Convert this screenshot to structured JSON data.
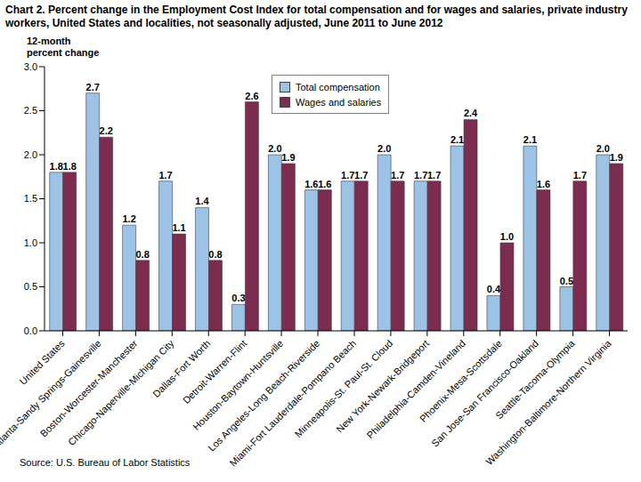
{
  "chart_data": {
    "type": "bar",
    "title": "Chart 2. Percent change in the Employment Cost Index for total compensation and for wages and salaries, private industry workers, United States and localities,  not seasonally adjusted, June 2011 to June 2012",
    "y_label": "12-month percent change",
    "source": "Source: U.S. Bureau of Labor Statistics",
    "categories": [
      "United States",
      "Atlanta-Sandy Springs-Gainesville",
      "Boston-Worcester-Manchester",
      "Chicago-Naperville-Michigan City",
      "Dallas-Fort Worth",
      "Detroit-Warren-Flint",
      "Houston-Baytown-Huntsville",
      "Los Angeles-Long Beach-Riverside",
      "Miami-Fort Lauderdale-Pompano Beach",
      "Minneapolis-St. Paul-St. Cloud",
      "New York-Newark-Bridgeport",
      "Philadelphia-Camden-Vineland",
      "Phoenix-Mesa-Scottsdale",
      "San Jose-San Francisco-Oakland",
      "Seattle-Tacoma-Olympia",
      "Washington-Baltimore-Northern  Virginia"
    ],
    "series": [
      {
        "name": "Total compensation",
        "color": "#9cc3e5",
        "values": [
          1.8,
          2.7,
          1.2,
          1.7,
          1.4,
          0.3,
          2.0,
          1.6,
          1.7,
          2.0,
          1.7,
          2.1,
          0.4,
          2.1,
          0.5,
          2.0
        ],
        "value_labels": [
          "1.8",
          "2.7",
          "1.2",
          "1.7",
          "1.4",
          "0.3",
          "2.0",
          "1.6",
          "1.7",
          "2.0",
          "1.7",
          "2.1",
          "0.4",
          "2.1",
          "0.5",
          "2.0"
        ]
      },
      {
        "name": "Wages and salaries",
        "color": "#7b2c4f",
        "values": [
          1.8,
          2.2,
          0.8,
          1.1,
          0.8,
          2.6,
          1.9,
          1.6,
          1.7,
          1.7,
          1.7,
          2.4,
          1.0,
          1.6,
          1.7,
          1.9
        ],
        "value_labels": [
          "1.8",
          "2.2",
          "0.8",
          "1.1",
          "0.8",
          "2.6",
          "1.9",
          "1.6",
          "1.7",
          "1.7",
          "1.7",
          "2.4",
          "1.0",
          "1.6",
          "1.7",
          "1.9"
        ]
      }
    ],
    "ylim": [
      0,
      3
    ],
    "yticks": [
      {
        "value": 0,
        "label": "0.0"
      },
      0.5,
      {
        "value": 1,
        "label": "1.0"
      },
      1.5,
      {
        "value": 2,
        "label": "2.0"
      },
      2.5,
      {
        "value": 3,
        "label": "3.0"
      }
    ],
    "grid": false,
    "legend": "top",
    "data_labels": true
  }
}
